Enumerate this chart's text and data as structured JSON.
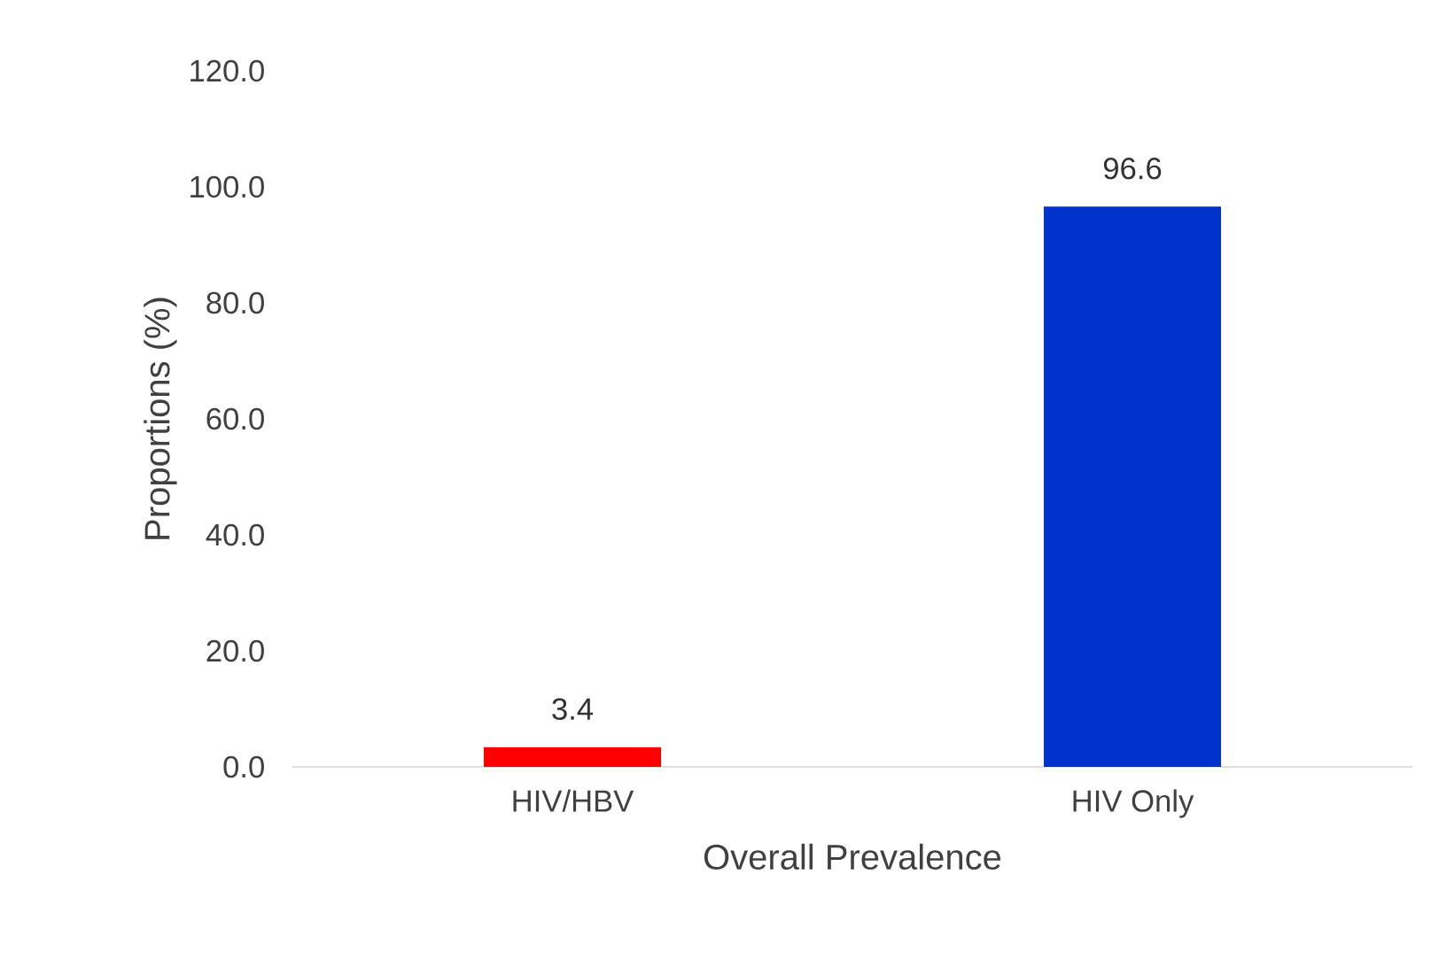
{
  "chart_data": {
    "type": "bar",
    "xlabel": "Overall Prevalence",
    "ylabel": "Proportions (%)",
    "categories": [
      "HIV/HBV",
      "HIV Only"
    ],
    "values": [
      3.4,
      96.6
    ],
    "colors": [
      "#ff0000",
      "#0033cc"
    ],
    "ylim": [
      0,
      120
    ],
    "yticks": [
      {
        "value": 0,
        "label": "0.0"
      },
      {
        "value": 20,
        "label": "20.0"
      },
      {
        "value": 40,
        "label": "40.0"
      },
      {
        "value": 60,
        "label": "60.0"
      },
      {
        "value": 80,
        "label": "80.0"
      },
      {
        "value": 100,
        "label": "100.0"
      },
      {
        "value": 120,
        "label": "120.0"
      }
    ],
    "data_labels": true,
    "grid": false
  }
}
